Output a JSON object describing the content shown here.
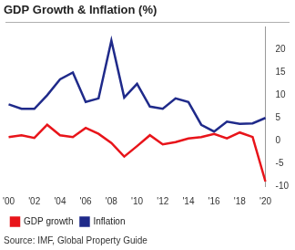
{
  "chart_data": {
    "type": "line",
    "title": "GDP Growth & Inflation (%)",
    "source": "Source: IMF, Global Property Guide",
    "categories": [
      "'00",
      null,
      "'02",
      null,
      "'04",
      null,
      "'06",
      null,
      "'08",
      null,
      "'10",
      null,
      "'12",
      null,
      "'14",
      null,
      "'16",
      null,
      "'18",
      null,
      "'20"
    ],
    "series": [
      {
        "name": "GDP growth",
        "color": "#e8141a",
        "values": [
          0.8,
          1.2,
          0.6,
          3.5,
          1.2,
          0.8,
          2.8,
          1.5,
          -0.5,
          -3.5,
          -1.2,
          1.2,
          -0.8,
          -0.3,
          0.5,
          0.8,
          1.5,
          0.5,
          1.8,
          0.8,
          -9
        ]
      },
      {
        "name": "Inflation",
        "color": "#1f2a8a",
        "values": [
          8,
          7,
          7,
          10,
          13.5,
          15,
          8.5,
          9.3,
          22,
          9.5,
          12.5,
          7.5,
          7,
          9.3,
          8.5,
          3.5,
          2,
          4.2,
          3.7,
          3.8,
          5
        ]
      }
    ],
    "ylim": [
      -10,
      25
    ],
    "yticks": [
      -10,
      -5,
      0,
      5,
      10,
      15,
      20
    ],
    "grid": false,
    "legend": "bottom-left"
  }
}
